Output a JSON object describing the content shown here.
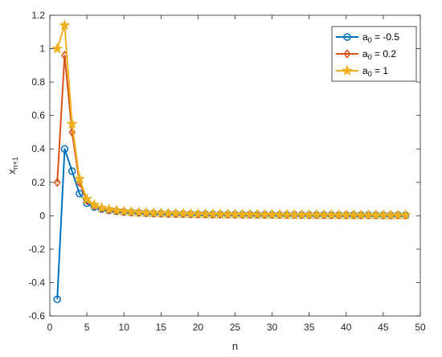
{
  "chart_data": {
    "type": "line",
    "xlabel": "n",
    "ylabel": {
      "base": "x",
      "sub": "n+1"
    },
    "xlim": [
      0,
      50
    ],
    "ylim": [
      -0.6,
      1.2
    ],
    "x_ticks": [
      0,
      5,
      10,
      15,
      20,
      25,
      30,
      35,
      40,
      45,
      50
    ],
    "y_ticks": [
      -0.6,
      -0.4,
      -0.2,
      0,
      0.2,
      0.4,
      0.6,
      0.8,
      1,
      1.2
    ],
    "x_tick_labels": [
      "0",
      "5",
      "10",
      "15",
      "20",
      "25",
      "30",
      "35",
      "40",
      "45",
      "50"
    ],
    "y_tick_labels": [
      "-0.6",
      "-0.4",
      "-0.2",
      "0",
      "0.2",
      "0.4",
      "0.6",
      "0.8",
      "1",
      "1.2"
    ],
    "grid": false,
    "legend_position": "top-right",
    "x": [
      1,
      2,
      3,
      4,
      5,
      6,
      7,
      8,
      9,
      10,
      11,
      12,
      13,
      14,
      15,
      16,
      17,
      18,
      19,
      20,
      21,
      22,
      23,
      24,
      25,
      26,
      27,
      28,
      29,
      30,
      31,
      32,
      33,
      34,
      35,
      36,
      37,
      38,
      39,
      40,
      41,
      42,
      43,
      44,
      45,
      46,
      47,
      48
    ],
    "series": [
      {
        "name_base": "a",
        "name_sub": "0",
        "name_rest": " = -0.5",
        "color": "#0072BD",
        "marker": "circle",
        "values": [
          -0.5,
          0.4,
          0.267,
          0.133,
          0.075,
          0.052,
          0.04,
          0.032,
          0.027,
          0.023,
          0.02,
          0.018,
          0.016,
          0.014,
          0.013,
          0.012,
          0.011,
          0.01,
          0.0096,
          0.009,
          0.0085,
          0.0081,
          0.0077,
          0.0073,
          0.007,
          0.0067,
          0.0064,
          0.0061,
          0.0059,
          0.0057,
          0.0055,
          0.0053,
          0.0051,
          0.0049,
          0.0048,
          0.0046,
          0.0045,
          0.0044,
          0.0042,
          0.0041,
          0.004,
          0.0039,
          0.0038,
          0.0037,
          0.0036,
          0.0035,
          0.0034,
          0.0034
        ]
      },
      {
        "name_base": "a",
        "name_sub": "0",
        "name_rest": " = 0.2",
        "color": "#D95319",
        "marker": "diamond",
        "values": [
          0.2,
          0.96,
          0.5,
          0.2,
          0.09,
          0.06,
          0.045,
          0.036,
          0.03,
          0.025,
          0.022,
          0.02,
          0.018,
          0.016,
          0.015,
          0.014,
          0.013,
          0.012,
          0.011,
          0.01,
          0.0098,
          0.0093,
          0.0089,
          0.0085,
          0.0081,
          0.0078,
          0.0075,
          0.0072,
          0.0069,
          0.0067,
          0.0065,
          0.0063,
          0.0061,
          0.0059,
          0.0057,
          0.0055,
          0.0054,
          0.0052,
          0.0051,
          0.005,
          0.0048,
          0.0047,
          0.0046,
          0.0045,
          0.0044,
          0.0043,
          0.0042,
          0.0041
        ]
      },
      {
        "name_base": "a",
        "name_sub": "0",
        "name_rest": " = 1",
        "color": "#EDB120",
        "marker": "star",
        "values": [
          1,
          1.14,
          0.55,
          0.22,
          0.1,
          0.065,
          0.048,
          0.038,
          0.032,
          0.027,
          0.024,
          0.021,
          0.019,
          0.017,
          0.016,
          0.015,
          0.014,
          0.013,
          0.012,
          0.011,
          0.0105,
          0.01,
          0.0095,
          0.0091,
          0.0087,
          0.0083,
          0.008,
          0.0077,
          0.0074,
          0.0072,
          0.0069,
          0.0067,
          0.0065,
          0.0063,
          0.0061,
          0.0059,
          0.0058,
          0.0056,
          0.0055,
          0.0053,
          0.0052,
          0.0051,
          0.005,
          0.0048,
          0.0047,
          0.0046,
          0.0045,
          0.0044
        ]
      }
    ]
  }
}
